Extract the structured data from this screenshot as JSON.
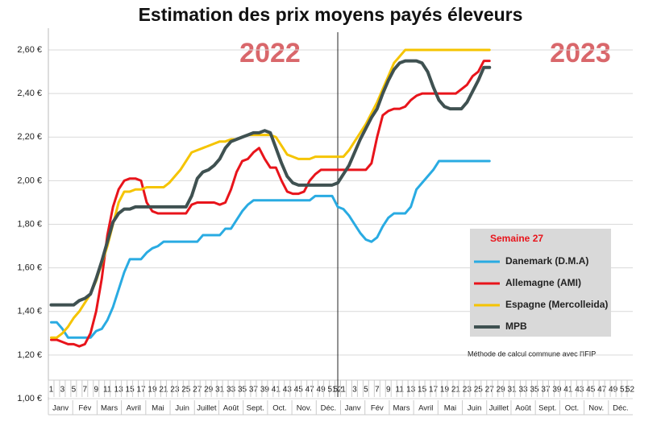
{
  "chart_data": {
    "type": "line",
    "title": "Estimation des prix moyens payés éleveurs",
    "annotations": [
      "2022",
      "2023"
    ],
    "legend_title": "Semaine 27",
    "note": "Méthode de calcul commune avec l'IFIP",
    "categories": [
      "1",
      null,
      "3",
      null,
      "5",
      null,
      "7",
      null,
      "9",
      null,
      "11",
      null,
      "13",
      null,
      "15",
      null,
      "17",
      null,
      "19",
      null,
      "21",
      null,
      "23",
      null,
      "25",
      null,
      "27",
      null,
      "29",
      null,
      "31",
      null,
      "33",
      null,
      "35",
      null,
      "37",
      null,
      "39",
      null,
      "41",
      null,
      "43",
      null,
      "45",
      null,
      "47",
      null,
      "49",
      null,
      "51",
      "52",
      "1",
      null,
      "3",
      null,
      "5",
      null,
      "7",
      null,
      "9",
      null,
      "11",
      null,
      "13",
      null,
      "15",
      null,
      "17",
      null,
      "19",
      null,
      "21",
      null,
      "23",
      null,
      "25",
      null,
      "27",
      null,
      "29",
      null,
      "31",
      null,
      "33",
      null,
      "35",
      null,
      "37",
      null,
      "39",
      null,
      "41",
      null,
      "43",
      null,
      "45",
      null,
      "47",
      null,
      "49",
      null,
      "51",
      "52"
    ],
    "months": [
      "Janv",
      "Fév",
      "Mars",
      "Avril",
      "Mai",
      "Juin",
      "Juillet",
      "Août",
      "Sept.",
      "Oct.",
      "Nov.",
      "Déc.",
      "Janv",
      "Fév",
      "Mars",
      "Avril",
      "Mai",
      "Juin",
      "Juillet",
      "Août",
      "Sept.",
      "Oct.",
      "Nov.",
      "Déc."
    ],
    "ylim": [
      1.0,
      2.7
    ],
    "yticks": [
      {
        "value": 1.0,
        "label": "1,00 €"
      },
      {
        "value": 1.2,
        "label": "1,20 €"
      },
      {
        "value": 1.4,
        "label": "1,40 €"
      },
      {
        "value": 1.6,
        "label": "1,60 €"
      },
      {
        "value": 1.8,
        "label": "1,80 €"
      },
      {
        "value": 2.0,
        "label": "2,00 €"
      },
      {
        "value": 2.2,
        "label": "2,20 €"
      },
      {
        "value": 2.4,
        "label": "2,40 €"
      },
      {
        "value": 2.6,
        "label": "2,60 €"
      }
    ],
    "grid": true,
    "series": [
      {
        "name": "Danemark (D.M.A)",
        "color": "#29abe2",
        "values": [
          1.35,
          1.35,
          1.32,
          1.28,
          1.28,
          1.28,
          1.28,
          1.28,
          1.31,
          1.32,
          1.36,
          1.42,
          1.5,
          1.58,
          1.64,
          1.64,
          1.64,
          1.67,
          1.69,
          1.7,
          1.72,
          1.72,
          1.72,
          1.72,
          1.72,
          1.72,
          1.72,
          1.75,
          1.75,
          1.75,
          1.75,
          1.78,
          1.78,
          1.82,
          1.86,
          1.89,
          1.91,
          1.91,
          1.91,
          1.91,
          1.91,
          1.91,
          1.91,
          1.91,
          1.91,
          1.91,
          1.91,
          1.93,
          1.93,
          1.93,
          1.93,
          1.88,
          1.87,
          1.84,
          1.8,
          1.76,
          1.73,
          1.72,
          1.74,
          1.79,
          1.83,
          1.85,
          1.85,
          1.85,
          1.88,
          1.96,
          1.99,
          2.02,
          2.05,
          2.09,
          2.09,
          2.09,
          2.09,
          2.09,
          2.09,
          2.09,
          2.09,
          2.09,
          2.09,
          null,
          null,
          null,
          null,
          null,
          null,
          null,
          null,
          null,
          null,
          null,
          null,
          null,
          null,
          null,
          null,
          null,
          null,
          null,
          null,
          null,
          null,
          null,
          null,
          null
        ]
      },
      {
        "name": "Allemagne (AMI)",
        "color": "#e8141b",
        "values": [
          1.27,
          1.27,
          1.26,
          1.25,
          1.25,
          1.24,
          1.25,
          1.3,
          1.4,
          1.55,
          1.75,
          1.88,
          1.96,
          2.0,
          2.01,
          2.01,
          2.0,
          1.9,
          1.86,
          1.85,
          1.85,
          1.85,
          1.85,
          1.85,
          1.85,
          1.89,
          1.9,
          1.9,
          1.9,
          1.9,
          1.89,
          1.9,
          1.96,
          2.04,
          2.09,
          2.1,
          2.13,
          2.15,
          2.1,
          2.06,
          2.06,
          2.0,
          1.95,
          1.94,
          1.94,
          1.95,
          2.0,
          2.03,
          2.05,
          2.05,
          2.05,
          2.05,
          2.05,
          2.05,
          2.05,
          2.05,
          2.05,
          2.08,
          2.2,
          2.3,
          2.32,
          2.33,
          2.33,
          2.34,
          2.37,
          2.39,
          2.4,
          2.4,
          2.4,
          2.4,
          2.4,
          2.4,
          2.4,
          2.42,
          2.44,
          2.48,
          2.5,
          2.55,
          2.55,
          null,
          null,
          null,
          null,
          null,
          null,
          null,
          null,
          null,
          null,
          null,
          null,
          null,
          null,
          null,
          null,
          null,
          null,
          null,
          null,
          null,
          null,
          null,
          null,
          null
        ]
      },
      {
        "name": "Espagne (Mercolleida)",
        "color": "#f5c400",
        "values": [
          1.28,
          1.28,
          1.3,
          1.33,
          1.37,
          1.4,
          1.44,
          1.48,
          1.54,
          1.62,
          1.7,
          1.8,
          1.9,
          1.95,
          1.95,
          1.96,
          1.96,
          1.97,
          1.97,
          1.97,
          1.97,
          1.99,
          2.02,
          2.05,
          2.09,
          2.13,
          2.14,
          2.15,
          2.16,
          2.17,
          2.18,
          2.18,
          2.19,
          2.19,
          2.2,
          2.21,
          2.21,
          2.21,
          2.21,
          2.21,
          2.2,
          2.16,
          2.12,
          2.11,
          2.1,
          2.1,
          2.1,
          2.11,
          2.11,
          2.11,
          2.11,
          2.11,
          2.11,
          2.14,
          2.18,
          2.22,
          2.26,
          2.31,
          2.36,
          2.42,
          2.48,
          2.54,
          2.57,
          2.6,
          2.6,
          2.6,
          2.6,
          2.6,
          2.6,
          2.6,
          2.6,
          2.6,
          2.6,
          2.6,
          2.6,
          2.6,
          2.6,
          2.6,
          2.6,
          null,
          null,
          null,
          null,
          null,
          null,
          null,
          null,
          null,
          null,
          null,
          null,
          null,
          null,
          null,
          null,
          null,
          null,
          null,
          null,
          null,
          null,
          null,
          null,
          null
        ]
      },
      {
        "name": "MPB",
        "color": "#3f5151",
        "values": [
          1.43,
          1.43,
          1.43,
          1.43,
          1.43,
          1.45,
          1.46,
          1.48,
          1.55,
          1.63,
          1.72,
          1.81,
          1.85,
          1.87,
          1.87,
          1.88,
          1.88,
          1.88,
          1.88,
          1.88,
          1.88,
          1.88,
          1.88,
          1.88,
          1.88,
          1.93,
          2.01,
          2.04,
          2.05,
          2.07,
          2.1,
          2.15,
          2.18,
          2.19,
          2.2,
          2.21,
          2.22,
          2.22,
          2.23,
          2.22,
          2.15,
          2.08,
          2.02,
          1.99,
          1.98,
          1.98,
          1.98,
          1.98,
          1.98,
          1.98,
          1.98,
          1.99,
          2.03,
          2.07,
          2.13,
          2.19,
          2.24,
          2.29,
          2.33,
          2.4,
          2.46,
          2.51,
          2.54,
          2.55,
          2.55,
          2.55,
          2.54,
          2.5,
          2.43,
          2.37,
          2.34,
          2.33,
          2.33,
          2.33,
          2.36,
          2.41,
          2.46,
          2.52,
          2.52,
          null,
          null,
          null,
          null,
          null,
          null,
          null,
          null,
          null,
          null,
          null,
          null,
          null,
          null,
          null,
          null,
          null,
          null,
          null,
          null,
          null,
          null,
          null,
          null,
          null
        ]
      }
    ]
  }
}
